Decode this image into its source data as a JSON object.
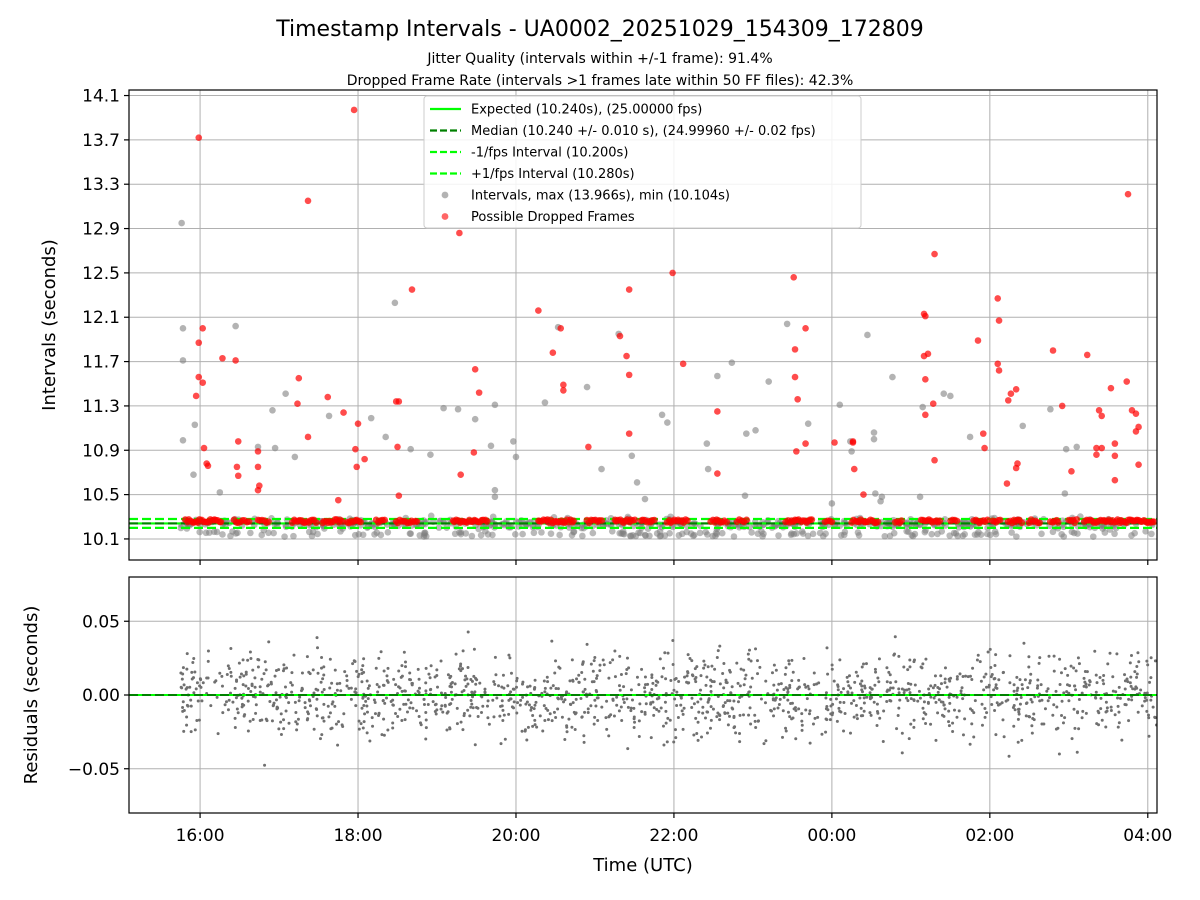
{
  "title": "Timestamp Intervals - UA0002_20251029_154309_172809",
  "subtitle_1": "Jitter Quality (intervals within +/-1 frame): 91.4%",
  "subtitle_2": "Dropped Frame Rate (intervals >1 frames late within 50 FF files): 42.3%",
  "colors": {
    "expected": "#00ff00",
    "median": "#008000",
    "interval_bounds": "#00ff00",
    "intervals": "#808080",
    "dropped": "#ff0000",
    "residuals": "#707070"
  },
  "chart_data": [
    {
      "type": "scatter",
      "ylabel": "Intervals (seconds)",
      "x_ticks": [
        "16:00",
        "18:00",
        "20:00",
        "22:00",
        "00:00",
        "02:00",
        "04:00"
      ],
      "y_ticks": [
        "10.1",
        "10.5",
        "10.9",
        "11.3",
        "11.7",
        "12.1",
        "12.5",
        "12.9",
        "13.3",
        "13.7",
        "14.1"
      ],
      "ylim": [
        9.91,
        14.15
      ],
      "xlim": [
        "15:06",
        "04:07"
      ],
      "grid": true,
      "legend_placement": "upper-center",
      "expected_interval": 10.24,
      "median_interval": 10.24,
      "lower_interval": 10.2,
      "upper_interval": 10.28,
      "max_interval": 13.966,
      "min_interval": 10.104,
      "legend": [
        {
          "label": "Expected (10.240s), (25.00000 fps)",
          "style": "line",
          "color": "#00ff00"
        },
        {
          "label": "Median (10.240 +/- 0.010 s), (24.99960 +/- 0.02 fps)",
          "style": "dashed",
          "color": "#008000"
        },
        {
          "label": "-1/fps Interval (10.200s)",
          "style": "dashed",
          "color": "#00ff00"
        },
        {
          "label": "+1/fps Interval (10.280s)",
          "style": "dashed",
          "color": "#00ff00"
        },
        {
          "label": "Intervals, max (13.966s), min (10.104s)",
          "style": "dot",
          "color": "#a0a0a0"
        },
        {
          "label": "Possible Dropped Frames",
          "style": "dot",
          "color": "#ff4040"
        }
      ],
      "dropped_points": [
        [
          "15:59",
          13.72
        ],
        [
          "15:59",
          11.87
        ],
        [
          "16:02",
          12.0
        ],
        [
          "15:57",
          11.39
        ],
        [
          "15:59",
          11.56
        ],
        [
          "16:02",
          11.51
        ],
        [
          "16:03",
          10.92
        ],
        [
          "16:05",
          10.78
        ],
        [
          "16:06",
          10.76
        ],
        [
          "16:17",
          11.73
        ],
        [
          "16:27",
          11.71
        ],
        [
          "16:29",
          10.98
        ],
        [
          "16:28",
          10.75
        ],
        [
          "16:29",
          10.67
        ],
        [
          "16:44",
          10.89
        ],
        [
          "16:44",
          10.75
        ],
        [
          "16:45",
          10.58
        ],
        [
          "16:44",
          10.54
        ],
        [
          "17:15",
          11.55
        ],
        [
          "17:14",
          11.32
        ],
        [
          "17:22",
          13.15
        ],
        [
          "17:22",
          11.02
        ],
        [
          "17:37",
          11.38
        ],
        [
          "17:45",
          10.45
        ],
        [
          "17:49",
          11.24
        ],
        [
          "17:57",
          13.97
        ],
        [
          "18:00",
          11.14
        ],
        [
          "17:58",
          10.91
        ],
        [
          "17:59",
          10.75
        ],
        [
          "18:05",
          10.82
        ],
        [
          "18:29",
          11.34
        ],
        [
          "18:31",
          11.34
        ],
        [
          "18:30",
          10.93
        ],
        [
          "18:31",
          10.49
        ],
        [
          "18:41",
          12.35
        ],
        [
          "19:17",
          12.86
        ],
        [
          "19:18",
          10.68
        ],
        [
          "19:29",
          11.63
        ],
        [
          "19:28",
          10.88
        ],
        [
          "19:32",
          11.42
        ],
        [
          "20:17",
          12.16
        ],
        [
          "20:28",
          11.78
        ],
        [
          "20:34",
          12.0
        ],
        [
          "20:36",
          11.49
        ],
        [
          "20:36",
          11.44
        ],
        [
          "20:55",
          10.93
        ],
        [
          "21:19",
          11.93
        ],
        [
          "21:24",
          11.75
        ],
        [
          "21:26",
          12.35
        ],
        [
          "21:26",
          11.58
        ],
        [
          "21:26",
          11.05
        ],
        [
          "21:59",
          12.5
        ],
        [
          "22:07",
          11.68
        ],
        [
          "22:33",
          11.25
        ],
        [
          "22:33",
          10.69
        ],
        [
          "23:31",
          12.46
        ],
        [
          "23:32",
          11.81
        ],
        [
          "23:32",
          11.56
        ],
        [
          "23:34",
          11.36
        ],
        [
          "23:33",
          10.89
        ],
        [
          "23:40",
          12.0
        ],
        [
          "23:40",
          10.96
        ],
        [
          "00:02",
          10.97
        ],
        [
          "00:16",
          10.98
        ],
        [
          "00:16",
          10.97
        ],
        [
          "00:17",
          10.73
        ],
        [
          "00:24",
          10.5
        ],
        [
          "01:10",
          12.13
        ],
        [
          "01:11",
          12.11
        ],
        [
          "01:13",
          11.77
        ],
        [
          "01:10",
          11.75
        ],
        [
          "01:11",
          11.54
        ],
        [
          "01:11",
          11.22
        ],
        [
          "01:18",
          12.67
        ],
        [
          "01:17",
          11.32
        ],
        [
          "01:18",
          10.81
        ],
        [
          "01:51",
          11.89
        ],
        [
          "01:55",
          11.05
        ],
        [
          "01:56",
          10.92
        ],
        [
          "02:06",
          12.27
        ],
        [
          "02:07",
          12.07
        ],
        [
          "02:06",
          11.68
        ],
        [
          "02:07",
          11.62
        ],
        [
          "02:14",
          11.35
        ],
        [
          "02:16",
          11.41
        ],
        [
          "02:13",
          10.6
        ],
        [
          "02:20",
          11.45
        ],
        [
          "02:21",
          10.78
        ],
        [
          "02:20",
          10.74
        ],
        [
          "02:48",
          11.8
        ],
        [
          "02:55",
          11.3
        ],
        [
          "03:02",
          10.71
        ],
        [
          "03:14",
          11.76
        ],
        [
          "03:21",
          10.92
        ],
        [
          "03:23",
          11.26
        ],
        [
          "03:25",
          11.21
        ],
        [
          "03:25",
          10.92
        ],
        [
          "03:21",
          10.86
        ],
        [
          "03:32",
          11.46
        ],
        [
          "03:35",
          10.96
        ],
        [
          "03:35",
          10.85
        ],
        [
          "03:35",
          10.63
        ],
        [
          "03:45",
          13.21
        ],
        [
          "03:44",
          11.52
        ],
        [
          "03:48",
          11.26
        ],
        [
          "03:51",
          11.23
        ],
        [
          "03:53",
          11.11
        ],
        [
          "03:51",
          11.07
        ],
        [
          "03:53",
          10.77
        ]
      ],
      "interval_points": [
        [
          "15:46",
          12.95
        ],
        [
          "15:47",
          12.0
        ],
        [
          "15:47",
          11.71
        ],
        [
          "15:47",
          10.99
        ],
        [
          "15:56",
          11.13
        ],
        [
          "15:55",
          10.68
        ],
        [
          "16:15",
          10.52
        ],
        [
          "16:27",
          12.02
        ],
        [
          "16:44",
          10.93
        ],
        [
          "16:55",
          11.26
        ],
        [
          "16:57",
          10.92
        ],
        [
          "17:05",
          11.41
        ],
        [
          "17:12",
          10.84
        ],
        [
          "17:38",
          11.21
        ],
        [
          "18:10",
          11.19
        ],
        [
          "18:21",
          11.02
        ],
        [
          "18:28",
          12.23
        ],
        [
          "18:40",
          10.91
        ],
        [
          "18:55",
          10.86
        ],
        [
          "19:05",
          11.28
        ],
        [
          "19:16",
          11.27
        ],
        [
          "19:29",
          11.18
        ],
        [
          "19:41",
          10.94
        ],
        [
          "19:44",
          10.54
        ],
        [
          "19:44",
          10.48
        ],
        [
          "19:44",
          11.31
        ],
        [
          "19:58",
          10.98
        ],
        [
          "20:00",
          10.84
        ],
        [
          "20:22",
          11.33
        ],
        [
          "20:32",
          12.01
        ],
        [
          "20:54",
          11.47
        ],
        [
          "21:05",
          10.73
        ],
        [
          "21:18",
          11.95
        ],
        [
          "21:28",
          10.85
        ],
        [
          "21:32",
          10.61
        ],
        [
          "21:38",
          10.46
        ],
        [
          "21:51",
          11.22
        ],
        [
          "21:55",
          11.15
        ],
        [
          "22:25",
          10.96
        ],
        [
          "22:26",
          10.73
        ],
        [
          "22:33",
          11.57
        ],
        [
          "22:44",
          11.69
        ],
        [
          "22:54",
          10.49
        ],
        [
          "22:55",
          11.05
        ],
        [
          "23:02",
          11.08
        ],
        [
          "23:12",
          11.52
        ],
        [
          "23:26",
          12.04
        ],
        [
          "23:42",
          11.14
        ],
        [
          "00:00",
          10.42
        ],
        [
          "00:06",
          11.31
        ],
        [
          "00:14",
          10.98
        ],
        [
          "00:15",
          10.89
        ],
        [
          "00:27",
          11.94
        ],
        [
          "00:32",
          11.06
        ],
        [
          "00:32",
          11.0
        ],
        [
          "00:33",
          10.51
        ],
        [
          "00:37",
          10.44
        ],
        [
          "00:38",
          10.48
        ],
        [
          "00:46",
          11.56
        ],
        [
          "01:07",
          10.48
        ],
        [
          "01:09",
          11.29
        ],
        [
          "01:25",
          11.41
        ],
        [
          "01:30",
          11.39
        ],
        [
          "01:45",
          11.02
        ],
        [
          "02:25",
          11.12
        ],
        [
          "02:46",
          11.27
        ],
        [
          "02:57",
          10.51
        ],
        [
          "02:58",
          10.91
        ],
        [
          "03:06",
          10.93
        ]
      ]
    },
    {
      "type": "scatter",
      "xlabel": "Time (UTC)",
      "ylabel": "Residuals (seconds)",
      "x_ticks": [
        "16:00",
        "18:00",
        "20:00",
        "22:00",
        "00:00",
        "02:00",
        "04:00"
      ],
      "y_ticks": [
        "0.05",
        "0.00",
        "−0.05"
      ],
      "ylim": [
        -0.08,
        0.08
      ],
      "grid": true
    }
  ]
}
